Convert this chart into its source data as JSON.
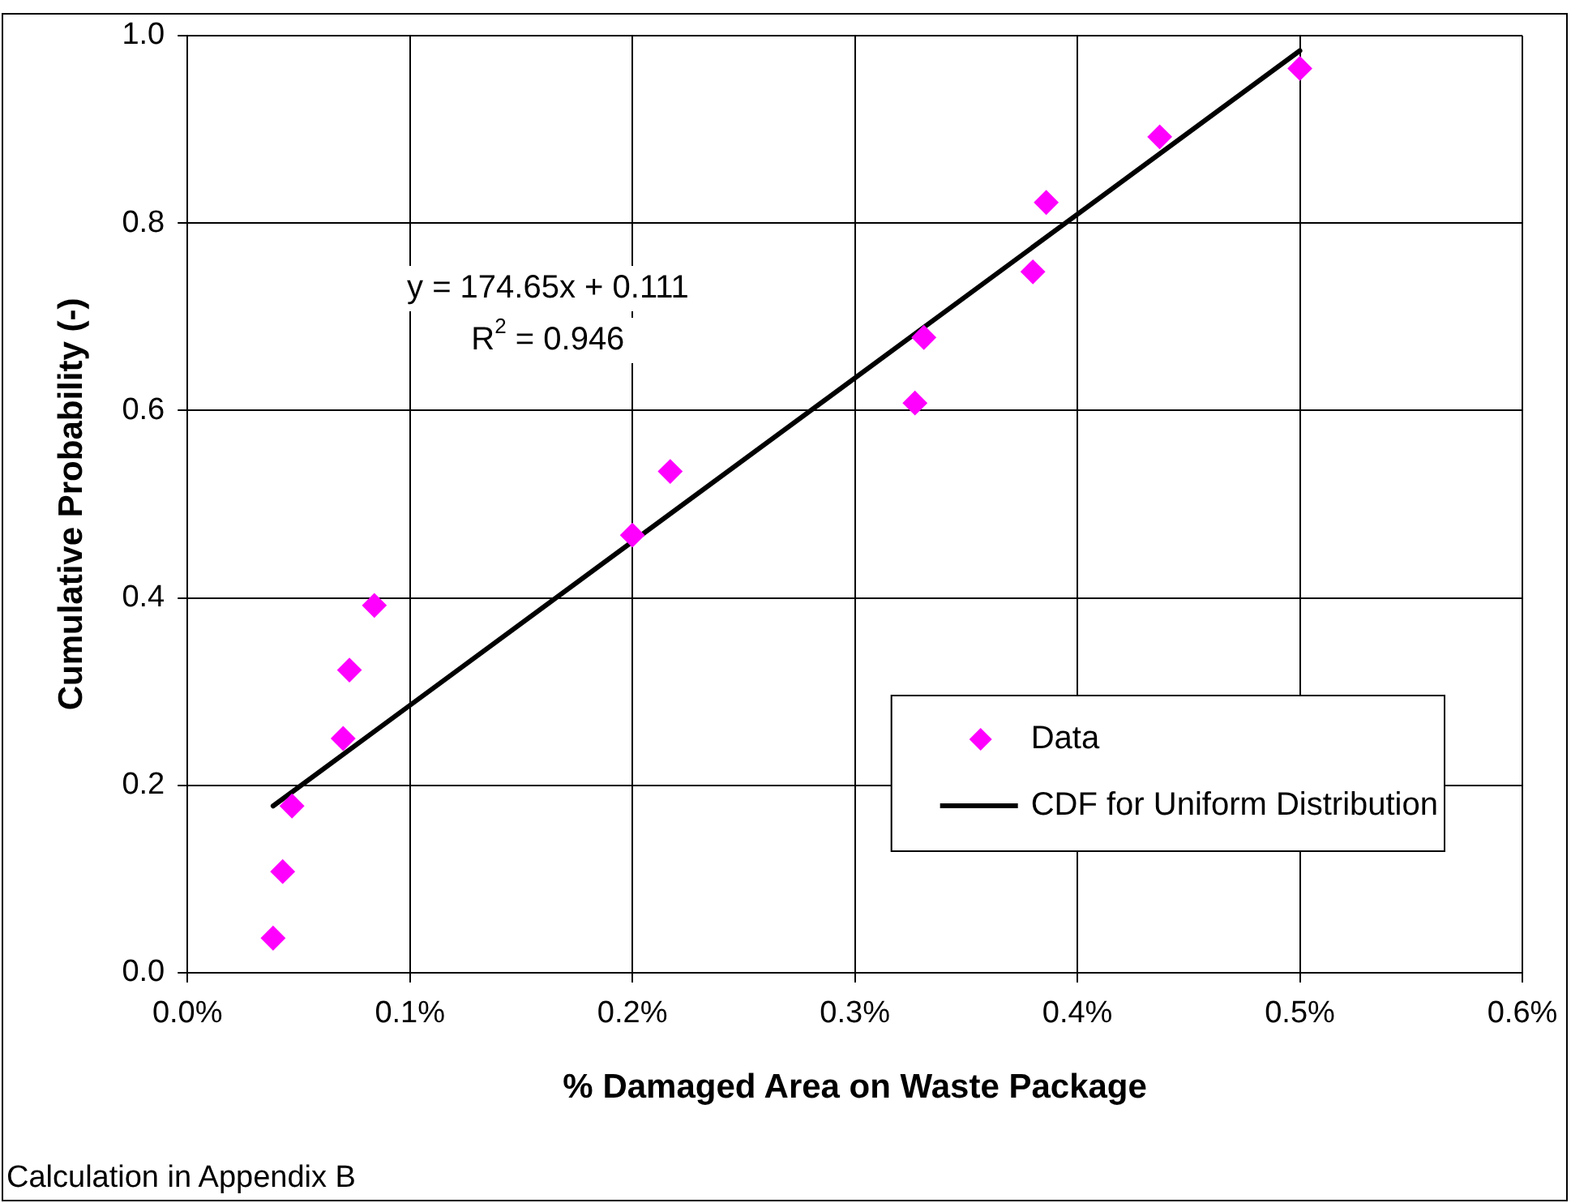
{
  "chart_data": {
    "type": "scatter",
    "xlabel": "% Damaged Area on Waste Package",
    "ylabel": "Cumulative Probability (-)",
    "xlim": [
      0,
      0.6
    ],
    "xticks": [
      {
        "value": 0,
        "label": "0.0%"
      },
      {
        "value": 0.1,
        "label": "0.1%"
      },
      {
        "value": 0.2,
        "label": "0.2%"
      },
      {
        "value": 0.3,
        "label": "0.3%"
      },
      {
        "value": 0.4,
        "label": "0.4%"
      },
      {
        "value": 0.5,
        "label": "0.5%"
      },
      {
        "value": 0.6,
        "label": "0.6%"
      }
    ],
    "ylim": [
      0,
      1
    ],
    "yticks": [
      {
        "value": 0,
        "label": "0.0"
      },
      {
        "value": 0.2,
        "label": "0.2"
      },
      {
        "value": 0.4,
        "label": "0.4"
      },
      {
        "value": 0.6,
        "label": "0.6"
      },
      {
        "value": 0.8,
        "label": "0.8"
      },
      {
        "value": 1,
        "label": "1.0"
      }
    ],
    "grid": true,
    "legend": "bottom right",
    "series": [
      {
        "name": "Data",
        "color": "#ff00ff",
        "marker": "diamond",
        "x": [
          0.0385,
          0.0428,
          0.047,
          0.07,
          0.0728,
          0.084,
          0.2,
          0.217,
          0.327,
          0.331,
          0.38,
          0.386,
          0.437,
          0.5
        ],
        "values": [
          0.037,
          0.108,
          0.178,
          0.25,
          0.323,
          0.392,
          0.467,
          0.535,
          0.608,
          0.678,
          0.748,
          0.822,
          0.892,
          0.965
        ]
      },
      {
        "name": "CDF for Uniform Distribution",
        "type": "line",
        "color": "#000000",
        "marker": "none",
        "line_style": "solid",
        "x": [
          0.0385,
          0.5
        ],
        "values": [
          0.178,
          0.984
        ]
      }
    ],
    "annotations": [
      "y = 174.65x + 0.111",
      "R$^{2}$ = 0.946",
      "Calculation in Appendix B"
    ]
  }
}
